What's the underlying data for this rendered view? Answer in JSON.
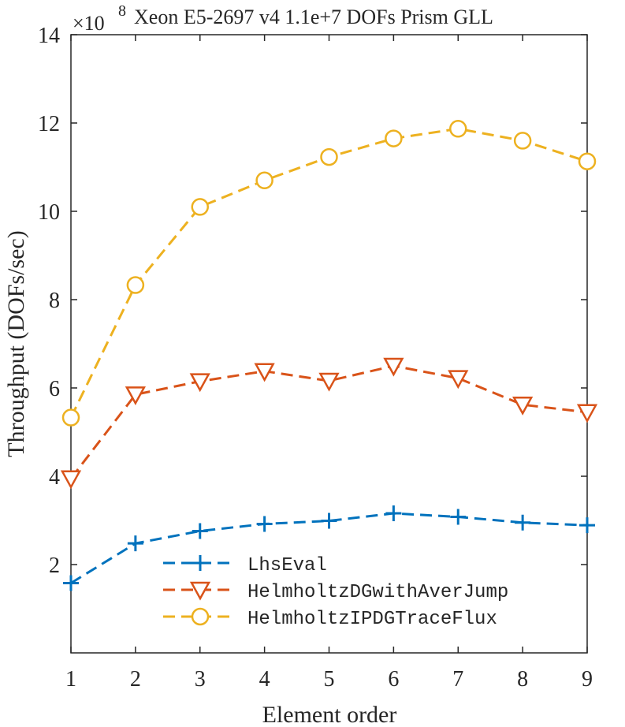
{
  "chart_data": {
    "type": "line",
    "title": "Xeon E5-2697 v4  1.1e+7 DOFs  Prism GLL",
    "exponent_base": "×10",
    "exponent_power": "8",
    "xlabel": "Element order",
    "ylabel": "Throughput (DOFs/sec)",
    "x": [
      1,
      2,
      3,
      4,
      5,
      6,
      7,
      8,
      9
    ],
    "xlim": [
      1,
      9
    ],
    "ylim": [
      0,
      14
    ],
    "x_ticks": [
      "1",
      "2",
      "3",
      "4",
      "5",
      "6",
      "7",
      "8",
      "9"
    ],
    "y_ticks": [
      "2",
      "4",
      "6",
      "8",
      "10",
      "12",
      "14"
    ],
    "y_tick_values": [
      2,
      4,
      6,
      8,
      10,
      12,
      14
    ],
    "legend_position": "bottom-left",
    "series": [
      {
        "name": "LhsEval",
        "color": "#0072BD",
        "marker": "plus",
        "values": [
          1.58,
          2.48,
          2.76,
          2.92,
          2.99,
          3.16,
          3.08,
          2.95,
          2.89
        ]
      },
      {
        "name": "HelmholtzDGwithAverJump",
        "color": "#D95319",
        "marker": "triangle-down",
        "values": [
          3.95,
          5.85,
          6.15,
          6.38,
          6.16,
          6.5,
          6.22,
          5.62,
          5.45
        ]
      },
      {
        "name": "HelmholtzIPDGTraceFlux",
        "color": "#EDB120",
        "marker": "circle",
        "values": [
          5.33,
          8.33,
          10.1,
          10.7,
          11.23,
          11.65,
          11.87,
          11.6,
          11.13
        ]
      }
    ]
  }
}
